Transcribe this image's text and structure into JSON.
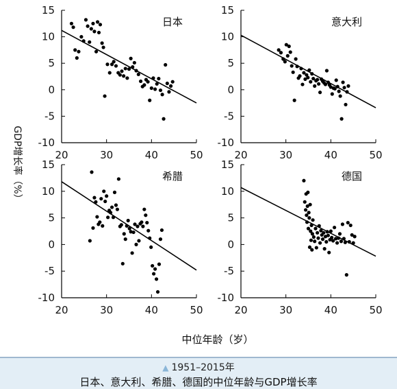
{
  "figure": {
    "ylabel": "GDP增长率（%）",
    "xlabel": "中位年龄（岁）"
  },
  "caption": {
    "line1": "1951–2015年",
    "line2": "日本、意大利、希腊、德国的中位年龄与GDP增长率"
  },
  "chart_data": [
    {
      "type": "scatter",
      "title": "日本",
      "xlim": [
        20,
        50
      ],
      "ylim": [
        -10,
        15
      ],
      "xticks": [
        "20",
        "30",
        "40",
        "50"
      ],
      "yticks": [
        "15",
        "10",
        "5",
        "0",
        "-5",
        "-10"
      ],
      "trend": [
        [
          20,
          11.2
        ],
        [
          50,
          -2.5
        ]
      ],
      "points": [
        [
          22.2,
          12.5
        ],
        [
          22.6,
          11.8
        ],
        [
          23.0,
          7.5
        ],
        [
          23.4,
          6.0
        ],
        [
          23.8,
          7.2
        ],
        [
          24.4,
          10.0
        ],
        [
          24.9,
          9.2
        ],
        [
          25.4,
          13.2
        ],
        [
          25.8,
          12.0
        ],
        [
          26.2,
          9.0
        ],
        [
          26.6,
          11.5
        ],
        [
          27.0,
          12.5
        ],
        [
          27.3,
          11.0
        ],
        [
          27.7,
          7.2
        ],
        [
          28.0,
          12.8
        ],
        [
          28.3,
          10.8
        ],
        [
          28.6,
          12.3
        ],
        [
          29.0,
          8.8
        ],
        [
          29.3,
          8.0
        ],
        [
          29.6,
          -1.2
        ],
        [
          30.2,
          4.8
        ],
        [
          30.7,
          3.2
        ],
        [
          31.2,
          4.8
        ],
        [
          31.6,
          5.3
        ],
        [
          32.1,
          4.5
        ],
        [
          32.6,
          3.2
        ],
        [
          33.0,
          2.8
        ],
        [
          33.4,
          3.5
        ],
        [
          33.8,
          2.6
        ],
        [
          34.2,
          4.0
        ],
        [
          34.6,
          2.2
        ],
        [
          35.0,
          3.9
        ],
        [
          35.4,
          5.9
        ],
        [
          35.8,
          4.3
        ],
        [
          36.2,
          5.1
        ],
        [
          36.6,
          3.6
        ],
        [
          37.1,
          2.9
        ],
        [
          37.6,
          1.6
        ],
        [
          38.0,
          0.6
        ],
        [
          38.4,
          0.9
        ],
        [
          38.8,
          1.9
        ],
        [
          39.2,
          1.5
        ],
        [
          39.6,
          -2.0
        ],
        [
          40.0,
          0.3
        ],
        [
          40.4,
          2.2
        ],
        [
          40.8,
          0.1
        ],
        [
          41.2,
          1.1
        ],
        [
          41.6,
          2.1
        ],
        [
          42.0,
          -0.1
        ],
        [
          42.4,
          -0.9
        ],
        [
          42.7,
          -5.5
        ],
        [
          43.1,
          4.7
        ],
        [
          43.5,
          1.2
        ],
        [
          43.9,
          -0.4
        ],
        [
          44.3,
          0.7
        ],
        [
          44.7,
          1.5
        ]
      ]
    },
    {
      "type": "scatter",
      "title": "意大利",
      "xlim": [
        20,
        50
      ],
      "ylim": [
        -10,
        15
      ],
      "xticks": [
        "20",
        "30",
        "40",
        "50"
      ],
      "yticks": [
        "15",
        "10",
        "5",
        "0",
        "-5",
        "-10"
      ],
      "trend": [
        [
          20,
          10.3
        ],
        [
          50,
          -3.4
        ]
      ],
      "points": [
        [
          28.4,
          7.5
        ],
        [
          28.9,
          7.0
        ],
        [
          29.4,
          5.8
        ],
        [
          29.8,
          5.3
        ],
        [
          30.1,
          8.5
        ],
        [
          30.4,
          6.4
        ],
        [
          30.7,
          8.2
        ],
        [
          31.0,
          7.1
        ],
        [
          31.3,
          4.5
        ],
        [
          31.6,
          3.3
        ],
        [
          31.9,
          -2.0
        ],
        [
          32.2,
          5.8
        ],
        [
          32.5,
          4.4
        ],
        [
          32.8,
          2.2
        ],
        [
          33.1,
          2.6
        ],
        [
          33.4,
          4.0
        ],
        [
          33.7,
          1.0
        ],
        [
          34.0,
          3.2
        ],
        [
          34.3,
          2.0
        ],
        [
          34.6,
          2.8
        ],
        [
          34.9,
          2.3
        ],
        [
          35.2,
          3.7
        ],
        [
          35.5,
          1.5
        ],
        [
          35.8,
          3.0
        ],
        [
          36.1,
          2.1
        ],
        [
          36.4,
          0.7
        ],
        [
          36.7,
          1.7
        ],
        [
          37.0,
          1.9
        ],
        [
          37.3,
          1.1
        ],
        [
          37.6,
          -0.5
        ],
        [
          37.9,
          2.0
        ],
        [
          38.2,
          1.6
        ],
        [
          38.5,
          1.3
        ],
        [
          38.8,
          1.0
        ],
        [
          39.1,
          3.6
        ],
        [
          39.4,
          1.4
        ],
        [
          39.7,
          0.9
        ],
        [
          40.0,
          0.5
        ],
        [
          40.3,
          -0.8
        ],
        [
          40.6,
          0.3
        ],
        [
          40.9,
          0.2
        ],
        [
          41.2,
          1.8
        ],
        [
          41.5,
          0.6
        ],
        [
          41.8,
          -0.3
        ],
        [
          42.1,
          -1.2
        ],
        [
          42.4,
          -5.5
        ],
        [
          42.7,
          1.4
        ],
        [
          43.0,
          0.4
        ],
        [
          43.3,
          -2.8
        ],
        [
          43.6,
          -0.4
        ],
        [
          43.9,
          0.7
        ]
      ]
    },
    {
      "type": "scatter",
      "title": "希腊",
      "xlim": [
        20,
        50
      ],
      "ylim": [
        -10,
        15
      ],
      "xticks": [
        "20",
        "30",
        "40",
        "50"
      ],
      "yticks": [
        "15",
        "10",
        "5",
        "0",
        "-5",
        "-10"
      ],
      "trend": [
        [
          20,
          11.8
        ],
        [
          50,
          -4.8
        ]
      ],
      "points": [
        [
          26.3,
          0.7
        ],
        [
          26.7,
          13.6
        ],
        [
          27.0,
          3.1
        ],
        [
          27.3,
          8.8
        ],
        [
          27.6,
          8.0
        ],
        [
          27.9,
          5.2
        ],
        [
          28.2,
          3.8
        ],
        [
          28.5,
          4.2
        ],
        [
          28.8,
          8.6
        ],
        [
          29.1,
          3.5
        ],
        [
          29.4,
          10.0
        ],
        [
          29.7,
          8.1
        ],
        [
          30.0,
          9.1
        ],
        [
          30.3,
          5.1
        ],
        [
          30.6,
          6.4
        ],
        [
          30.9,
          6.0
        ],
        [
          31.2,
          7.0
        ],
        [
          31.5,
          5.1
        ],
        [
          31.8,
          9.8
        ],
        [
          32.1,
          7.4
        ],
        [
          32.4,
          6.6
        ],
        [
          32.7,
          12.3
        ],
        [
          33.0,
          3.4
        ],
        [
          33.3,
          3.7
        ],
        [
          33.6,
          -3.6
        ],
        [
          33.9,
          2.0
        ],
        [
          34.2,
          1.0
        ],
        [
          34.5,
          3.5
        ],
        [
          34.8,
          4.5
        ],
        [
          35.1,
          3.0
        ],
        [
          35.4,
          2.4
        ],
        [
          35.7,
          -1.6
        ],
        [
          36.0,
          2.3
        ],
        [
          36.3,
          3.8
        ],
        [
          36.6,
          0.0
        ],
        [
          36.9,
          3.4
        ],
        [
          37.2,
          0.7
        ],
        [
          37.5,
          3.9
        ],
        [
          37.8,
          4.2
        ],
        [
          38.1,
          3.4
        ],
        [
          38.4,
          6.6
        ],
        [
          38.7,
          5.5
        ],
        [
          39.0,
          4.1
        ],
        [
          39.3,
          2.6
        ],
        [
          39.6,
          1.2
        ],
        [
          39.9,
          -0.5
        ],
        [
          40.2,
          -4.0
        ],
        [
          40.5,
          -5.5
        ],
        [
          40.8,
          -4.6
        ],
        [
          41.1,
          -6.5
        ],
        [
          41.4,
          -8.9
        ],
        [
          41.7,
          -3.7
        ],
        [
          42.0,
          1.0
        ],
        [
          42.3,
          2.7
        ]
      ]
    },
    {
      "type": "scatter",
      "title": "德国",
      "xlim": [
        20,
        50
      ],
      "ylim": [
        -10,
        15
      ],
      "xticks": [
        "20",
        "30",
        "40",
        "50"
      ],
      "yticks": [
        "15",
        "10",
        "5",
        "0",
        "-5",
        "-10"
      ],
      "trend": [
        [
          20,
          10.7
        ],
        [
          50,
          -2.2
        ]
      ],
      "points": [
        [
          34.0,
          12.0
        ],
        [
          34.2,
          8.0
        ],
        [
          34.4,
          6.5
        ],
        [
          34.5,
          9.5
        ],
        [
          34.6,
          5.5
        ],
        [
          34.7,
          4.2
        ],
        [
          34.8,
          7.2
        ],
        [
          34.9,
          9.8
        ],
        [
          35.0,
          3.0
        ],
        [
          35.1,
          6.0
        ],
        [
          35.2,
          5.0
        ],
        [
          35.3,
          -0.5
        ],
        [
          35.4,
          7.5
        ],
        [
          35.5,
          2.5
        ],
        [
          35.6,
          0.8
        ],
        [
          35.7,
          3.6
        ],
        [
          35.8,
          -1.0
        ],
        [
          35.9,
          2.0
        ],
        [
          36.0,
          4.6
        ],
        [
          36.2,
          1.4
        ],
        [
          36.4,
          0.6
        ],
        [
          36.6,
          3.0
        ],
        [
          36.8,
          -0.6
        ],
        [
          37.0,
          2.2
        ],
        [
          37.2,
          1.2
        ],
        [
          37.4,
          3.5
        ],
        [
          37.6,
          0.3
        ],
        [
          37.8,
          2.6
        ],
        [
          38.0,
          1.8
        ],
        [
          38.2,
          1.0
        ],
        [
          38.4,
          2.2
        ],
        [
          38.6,
          -0.8
        ],
        [
          38.8,
          1.5
        ],
        [
          39.0,
          0.5
        ],
        [
          39.2,
          2.4
        ],
        [
          39.4,
          1.7
        ],
        [
          39.6,
          -1.5
        ],
        [
          39.8,
          0.9
        ],
        [
          40.0,
          2.5
        ],
        [
          40.2,
          1.3
        ],
        [
          40.5,
          0.7
        ],
        [
          40.8,
          3.2
        ],
        [
          41.1,
          1.1
        ],
        [
          41.4,
          0.3
        ],
        [
          41.7,
          1.2
        ],
        [
          42.0,
          2.0
        ],
        [
          42.3,
          0.6
        ],
        [
          42.6,
          3.8
        ],
        [
          42.9,
          1.1
        ],
        [
          43.2,
          0.4
        ],
        [
          43.5,
          -5.7
        ],
        [
          43.8,
          4.1
        ],
        [
          44.1,
          0.5
        ],
        [
          44.4,
          3.6
        ],
        [
          44.7,
          1.8
        ],
        [
          45.0,
          0.3
        ],
        [
          45.3,
          1.5
        ]
      ]
    }
  ]
}
